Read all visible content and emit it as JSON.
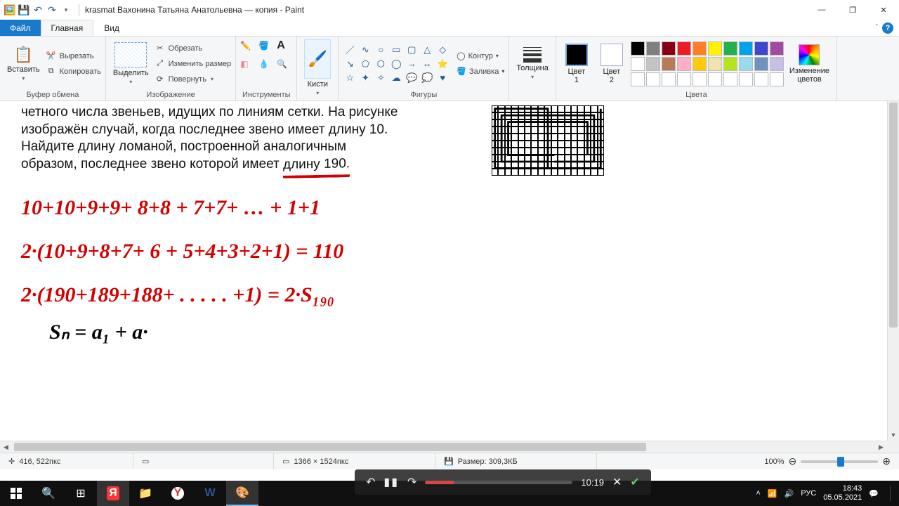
{
  "title": "krasmat Вахонина Татьяна Анатольевна — копия - Paint",
  "tabs": {
    "file": "Файл",
    "home": "Главная",
    "view": "Вид"
  },
  "ribbon": {
    "clipboard": {
      "paste": "Вставить",
      "cut": "Вырезать",
      "copy": "Копировать",
      "label": "Буфер обмена"
    },
    "image": {
      "select": "Выделить",
      "crop": "Обрезать",
      "resize": "Изменить размер",
      "rotate": "Повернуть",
      "label": "Изображение"
    },
    "tools": {
      "label": "Инструменты"
    },
    "brushes": {
      "btn": "Кисти"
    },
    "shapes": {
      "outline": "Контур",
      "fill": "Заливка",
      "label": "Фигуры"
    },
    "stroke": {
      "label": "Толщина"
    },
    "color1": {
      "label": "Цвет\n1"
    },
    "color2": {
      "label": "Цвет\n2"
    },
    "colors_label": "Цвета",
    "edit_colors": "Изменение\nцветов",
    "palette": [
      "#000000",
      "#7f7f7f",
      "#880015",
      "#ed1c24",
      "#ff7f27",
      "#fff200",
      "#22b14c",
      "#00a2e8",
      "#3f48cc",
      "#a349a4",
      "#ffffff",
      "#c3c3c3",
      "#b97a57",
      "#ffaec9",
      "#ffc90e",
      "#efe4b0",
      "#b5e61d",
      "#99d9ea",
      "#7092be",
      "#c8bfe7",
      "#ffffff",
      "#ffffff",
      "#ffffff",
      "#ffffff",
      "#ffffff",
      "#ffffff",
      "#ffffff",
      "#ffffff",
      "#ffffff",
      "#ffffff"
    ],
    "color1_hex": "#000000",
    "color2_hex": "#ffffff"
  },
  "document": {
    "problem_l1": "четного числа звеньев, идущих по линиям сетки. На рисунке",
    "problem_l2": "изображён случай, когда последнее звено имеет длину 10.",
    "problem_l3": "Найдите   длину   ломаной,   построенной   аналогичным",
    "problem_l4_a": "образом, последнее звено которой имеет ",
    "problem_l4_b": "длину 190.",
    "hand1": "10+10+9+9+ 8+8 + 7+7+ …    + 1+1",
    "hand2": "2·(10+9+8+7+ 6 + 5+4+3+2+1) = 110",
    "hand3": "2·(190+189+188+ . . . . .   +1)  = 2·S₁₉₀",
    "hand4": "Sₙ =    a₁ + a·"
  },
  "status": {
    "pos_icon": "✛",
    "pos": "416, 522пкс",
    "sel_icon": "▭",
    "dim_icon": "▭",
    "dim": "1366 × 1524пкс",
    "size_icon": "💾",
    "size": "Размер: 309,3КБ",
    "zoom": "100%"
  },
  "media": {
    "time": "10:19"
  },
  "taskbar": {
    "lang": "РУС",
    "clock": "18:43",
    "date": "05.05.2021"
  }
}
